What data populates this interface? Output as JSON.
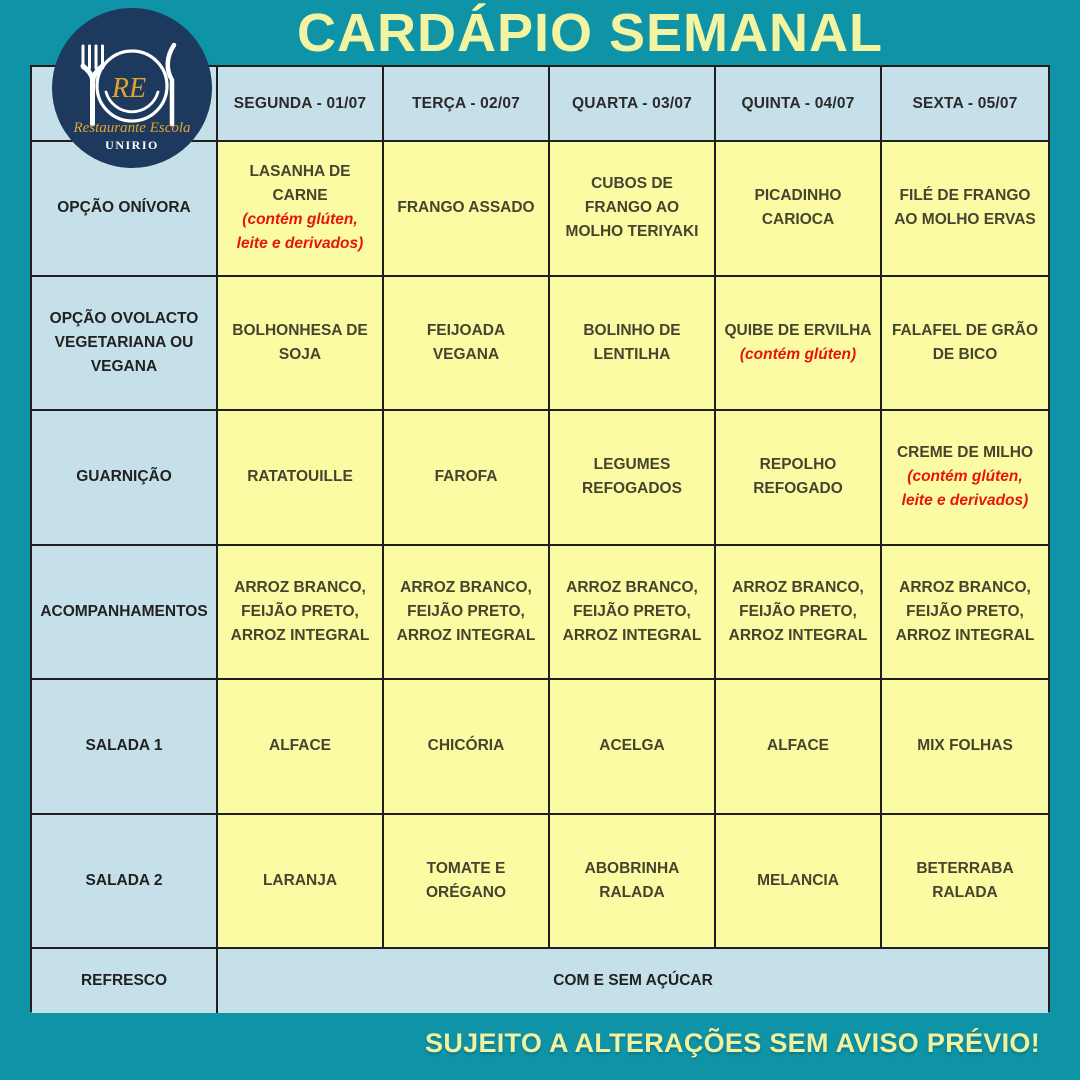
{
  "title": "CARDÁPIO SEMANAL",
  "logo": {
    "initials": "RE",
    "name": "Restaurante Escola",
    "institution": "UNIRIO"
  },
  "footer": {
    "notice": "SUJEITO A ALTERAÇÕES SEM AVISO PRÉVIO!"
  },
  "colors": {
    "background_teal": "#0e93a7",
    "title_yellow": "#f3f4a2",
    "cell_yellow": "#fbfba3",
    "cell_blue": "#c6e0ea",
    "logo_navy": "#1d3a5e",
    "logo_gold": "#e2a42d",
    "allergen_red": "#e8150d",
    "grid_line": "#1f1f1f"
  },
  "table": {
    "day_headers": [
      "SEGUNDA - 01/07",
      "TERÇA - 02/07",
      "QUARTA - 03/07",
      "QUINTA - 04/07",
      "SEXTA - 05/07"
    ],
    "rows": [
      {
        "label": "OPÇÃO ONÍVORA",
        "cells": [
          {
            "text": "LASANHA DE CARNE",
            "note": "(contém glúten, leite e derivados)"
          },
          {
            "text": "FRANGO ASSADO"
          },
          {
            "text": "CUBOS DE FRANGO AO MOLHO TERIYAKI"
          },
          {
            "text": "PICADINHO CARIOCA"
          },
          {
            "text": "FILÉ DE FRANGO AO MOLHO ERVAS"
          }
        ]
      },
      {
        "label": "OPÇÃO OVOLACTO VEGETARIANA OU VEGANA",
        "cells": [
          {
            "text": "BOLHONHESA DE SOJA"
          },
          {
            "text": "FEIJOADA VEGANA"
          },
          {
            "text": "BOLINHO DE LENTILHA"
          },
          {
            "text": "QUIBE DE ERVILHA",
            "note": "(contém glúten)"
          },
          {
            "text": "FALAFEL DE GRÃO DE BICO"
          }
        ]
      },
      {
        "label": "GUARNIÇÃO",
        "cells": [
          {
            "text": "RATATOUILLE"
          },
          {
            "text": "FAROFA"
          },
          {
            "text": "LEGUMES REFOGADOS"
          },
          {
            "text": "REPOLHO REFOGADO"
          },
          {
            "text": "CREME DE MILHO",
            "note": "(contém glúten, leite e derivados)"
          }
        ]
      },
      {
        "label": "ACOMPANHAMENTOS",
        "cells": [
          {
            "text": "ARROZ BRANCO, FEIJÃO PRETO, ARROZ INTEGRAL"
          },
          {
            "text": "ARROZ BRANCO, FEIJÃO PRETO, ARROZ INTEGRAL"
          },
          {
            "text": "ARROZ BRANCO, FEIJÃO PRETO, ARROZ INTEGRAL"
          },
          {
            "text": "ARROZ BRANCO, FEIJÃO PRETO, ARROZ INTEGRAL"
          },
          {
            "text": "ARROZ BRANCO, FEIJÃO PRETO, ARROZ INTEGRAL"
          }
        ]
      },
      {
        "label": "SALADA 1",
        "cells": [
          {
            "text": "ALFACE"
          },
          {
            "text": "CHICÓRIA"
          },
          {
            "text": "ACELGA"
          },
          {
            "text": "ALFACE"
          },
          {
            "text": "MIX FOLHAS"
          }
        ]
      },
      {
        "label": "SALADA 2",
        "cells": [
          {
            "text": "LARANJA"
          },
          {
            "text": "TOMATE E ORÉGANO"
          },
          {
            "text": "ABOBRINHA RALADA"
          },
          {
            "text": "MELANCIA"
          },
          {
            "text": "BETERRABA RALADA"
          }
        ]
      },
      {
        "label": "REFRESCO",
        "merged": true,
        "cells": [
          {
            "text": "COM E SEM AÇÚCAR"
          }
        ]
      }
    ]
  }
}
